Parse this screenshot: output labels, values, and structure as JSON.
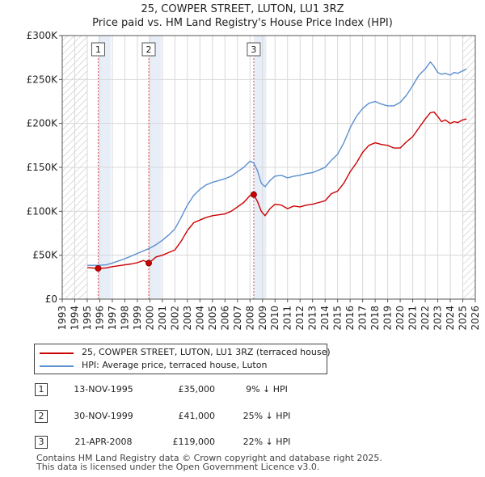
{
  "chart_title": "25, COWPER STREET, LUTON, LU1 3RZ",
  "chart_subtitle": "Price paid vs. HM Land Registry's House Price Index (HPI)",
  "chart_data": {
    "type": "line",
    "title": "25, COWPER STREET, LUTON, LU1 3RZ",
    "subtitle": "Price paid vs. HM Land Registry's House Price Index (HPI)",
    "xlabel": "",
    "ylabel": "",
    "xlim": [
      1993,
      2026
    ],
    "ylim": [
      0,
      300000
    ],
    "x_ticks": [
      1993,
      1994,
      1995,
      1996,
      1997,
      1998,
      1999,
      2000,
      2001,
      2002,
      2003,
      2004,
      2005,
      2006,
      2007,
      2008,
      2009,
      2010,
      2011,
      2012,
      2013,
      2014,
      2015,
      2016,
      2017,
      2018,
      2019,
      2020,
      2021,
      2022,
      2023,
      2024,
      2025,
      2026
    ],
    "y_ticks": [
      0,
      50000,
      100000,
      150000,
      200000,
      250000,
      300000
    ],
    "y_tick_labels": [
      "£0",
      "£50K",
      "£100K",
      "£150K",
      "£200K",
      "£250K",
      "£300K"
    ],
    "grid": true,
    "hatched_ranges": [
      [
        1993,
        1995.0
      ],
      [
        2025.0,
        2026
      ]
    ],
    "series": [
      {
        "name": "25, COWPER STREET, LUTON, LU1 3RZ (terraced house)",
        "color": "#cc0000",
        "x": [
          1995.0,
          1995.87,
          1996.5,
          1997.0,
          1997.5,
          1998.0,
          1998.5,
          1999.0,
          1999.5,
          1999.91,
          2000.5,
          2001.0,
          2001.5,
          2002.0,
          2002.5,
          2003.0,
          2003.5,
          2004.0,
          2004.5,
          2005.0,
          2005.5,
          2006.0,
          2006.5,
          2007.0,
          2007.5,
          2008.0,
          2008.3,
          2008.6,
          2008.9,
          2009.2,
          2009.6,
          2010.0,
          2010.5,
          2011.0,
          2011.5,
          2012.0,
          2012.5,
          2013.0,
          2013.5,
          2014.0,
          2014.5,
          2015.0,
          2015.5,
          2016.0,
          2016.5,
          2017.0,
          2017.5,
          2018.0,
          2018.5,
          2019.0,
          2019.5,
          2020.0,
          2020.5,
          2021.0,
          2021.5,
          2022.0,
          2022.4,
          2022.7,
          2023.0,
          2023.3,
          2023.6,
          2024.0,
          2024.3,
          2024.6,
          2025.0,
          2025.3
        ],
        "values": [
          36000,
          35000,
          35500,
          37000,
          38000,
          39000,
          40000,
          41500,
          44000,
          41000,
          48000,
          50000,
          53000,
          56000,
          66000,
          78000,
          87000,
          90000,
          93000,
          95000,
          96000,
          97000,
          100000,
          105000,
          110000,
          118000,
          119000,
          111000,
          100000,
          95000,
          103000,
          108000,
          107000,
          103000,
          106000,
          105000,
          107000,
          108000,
          110000,
          112000,
          120000,
          123000,
          132000,
          145000,
          155000,
          167000,
          175000,
          178000,
          176000,
          175000,
          172000,
          172000,
          179000,
          185000,
          195000,
          205000,
          212000,
          213000,
          208000,
          202000,
          204000,
          200000,
          202000,
          201000,
          204000,
          205000
        ]
      },
      {
        "name": "HPI: Average price, terraced house, Luton",
        "color": "#5b8fd0",
        "x": [
          1995.0,
          1995.87,
          1996.5,
          1997.0,
          1997.5,
          1998.0,
          1998.5,
          1999.0,
          1999.5,
          2000.0,
          2000.5,
          2001.0,
          2001.5,
          2002.0,
          2002.5,
          2003.0,
          2003.5,
          2004.0,
          2004.5,
          2005.0,
          2005.5,
          2006.0,
          2006.5,
          2007.0,
          2007.5,
          2008.0,
          2008.3,
          2008.6,
          2008.9,
          2009.2,
          2009.6,
          2010.0,
          2010.5,
          2011.0,
          2011.5,
          2012.0,
          2012.5,
          2013.0,
          2013.5,
          2014.0,
          2014.5,
          2015.0,
          2015.5,
          2016.0,
          2016.5,
          2017.0,
          2017.5,
          2018.0,
          2018.5,
          2019.0,
          2019.5,
          2020.0,
          2020.5,
          2021.0,
          2021.5,
          2022.0,
          2022.4,
          2022.7,
          2023.0,
          2023.3,
          2023.6,
          2024.0,
          2024.3,
          2024.6,
          2025.0,
          2025.3
        ],
        "values": [
          38500,
          38500,
          39000,
          41000,
          43500,
          46000,
          49000,
          52000,
          55000,
          58000,
          62000,
          67000,
          73000,
          80000,
          93000,
          107000,
          118000,
          125000,
          130000,
          133000,
          135000,
          137000,
          140000,
          145000,
          150000,
          157000,
          155000,
          146000,
          132000,
          128000,
          135000,
          140000,
          141000,
          138000,
          140000,
          141000,
          143000,
          144000,
          147000,
          150000,
          158000,
          165000,
          178000,
          195000,
          208000,
          217000,
          223000,
          225000,
          222000,
          220000,
          220000,
          224000,
          232000,
          243000,
          255000,
          262000,
          270000,
          265000,
          258000,
          256000,
          257000,
          255000,
          258000,
          257000,
          260000,
          262000
        ]
      }
    ],
    "sales": [
      {
        "label": "1",
        "x": 1995.87,
        "value": 35000
      },
      {
        "label": "2",
        "x": 1999.91,
        "value": 41000
      },
      {
        "label": "3",
        "x": 2008.3,
        "value": 119000
      }
    ]
  },
  "legend": {
    "items": [
      {
        "label": "25, COWPER STREET, LUTON, LU1 3RZ (terraced house)",
        "color": "#cc0000"
      },
      {
        "label": "HPI: Average price, terraced house, Luton",
        "color": "#5b8fd0"
      }
    ]
  },
  "sales_table": [
    {
      "num": "1",
      "date": "13-NOV-1995",
      "price": "£35,000",
      "hpi": "9% ↓ HPI"
    },
    {
      "num": "2",
      "date": "30-NOV-1999",
      "price": "£41,000",
      "hpi": "25% ↓ HPI"
    },
    {
      "num": "3",
      "date": "21-APR-2008",
      "price": "£119,000",
      "hpi": "22% ↓ HPI"
    }
  ],
  "footer": {
    "line1": "Contains HM Land Registry data © Crown copyright and database right 2025.",
    "line2": "This data is licensed under the Open Government Licence v3.0."
  }
}
